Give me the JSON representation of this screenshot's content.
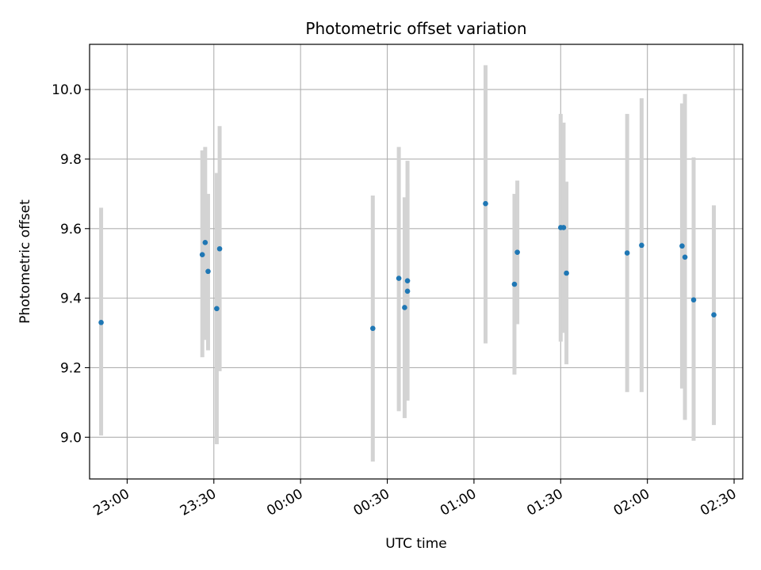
{
  "chart_data": {
    "type": "scatter",
    "title": "Photometric offset variation",
    "xlabel": "UTC time",
    "ylabel": "Photometric offset",
    "x_axis": {
      "kind": "time",
      "range": [
        "22:47",
        "02:33"
      ],
      "ticks": [
        "23:00",
        "23:30",
        "00:00",
        "00:30",
        "01:00",
        "01:30",
        "02:00",
        "02:30"
      ]
    },
    "y_axis": {
      "range": [
        8.88,
        10.13
      ],
      "ticks": [
        9.0,
        9.2,
        9.4,
        9.6,
        9.8,
        10.0
      ],
      "tick_labels": [
        "9.0",
        "9.2",
        "9.4",
        "9.6",
        "9.8",
        "10.0"
      ]
    },
    "grid": true,
    "marker_color": "#1f77b4",
    "errorbar_color": "#d3d3d3",
    "points": [
      {
        "time": "22:51",
        "value": 9.33,
        "low": 9.005,
        "high": 9.66
      },
      {
        "time": "23:26",
        "value": 9.525,
        "low": 9.23,
        "high": 9.825
      },
      {
        "time": "23:27",
        "value": 9.56,
        "low": 9.28,
        "high": 9.835
      },
      {
        "time": "23:28",
        "value": 9.477,
        "low": 9.25,
        "high": 9.7
      },
      {
        "time": "23:31",
        "value": 9.37,
        "low": 8.98,
        "high": 9.76
      },
      {
        "time": "23:32",
        "value": 9.542,
        "low": 9.19,
        "high": 9.895
      },
      {
        "time": "00:25",
        "value": 9.313,
        "low": 8.93,
        "high": 9.695
      },
      {
        "time": "00:34",
        "value": 9.457,
        "low": 9.075,
        "high": 9.835
      },
      {
        "time": "00:36",
        "value": 9.373,
        "low": 9.055,
        "high": 9.69
      },
      {
        "time": "00:37",
        "value": 9.45,
        "low": 9.105,
        "high": 9.795
      },
      {
        "time": "00:37",
        "value": 9.42,
        "low": 9.11,
        "high": 9.73
      },
      {
        "time": "01:04",
        "value": 9.672,
        "low": 9.27,
        "high": 10.07
      },
      {
        "time": "01:14",
        "value": 9.44,
        "low": 9.18,
        "high": 9.7
      },
      {
        "time": "01:15",
        "value": 9.532,
        "low": 9.325,
        "high": 9.738
      },
      {
        "time": "01:30",
        "value": 9.603,
        "low": 9.275,
        "high": 9.93
      },
      {
        "time": "01:31",
        "value": 9.603,
        "low": 9.3,
        "high": 9.905
      },
      {
        "time": "01:32",
        "value": 9.472,
        "low": 9.21,
        "high": 9.735
      },
      {
        "time": "01:53",
        "value": 9.53,
        "low": 9.13,
        "high": 9.93
      },
      {
        "time": "01:58",
        "value": 9.552,
        "low": 9.13,
        "high": 9.975
      },
      {
        "time": "02:12",
        "value": 9.55,
        "low": 9.14,
        "high": 9.96
      },
      {
        "time": "02:13",
        "value": 9.518,
        "low": 9.05,
        "high": 9.987
      },
      {
        "time": "02:16",
        "value": 9.395,
        "low": 8.99,
        "high": 9.805
      },
      {
        "time": "02:23",
        "value": 9.352,
        "low": 9.035,
        "high": 9.667
      }
    ]
  }
}
